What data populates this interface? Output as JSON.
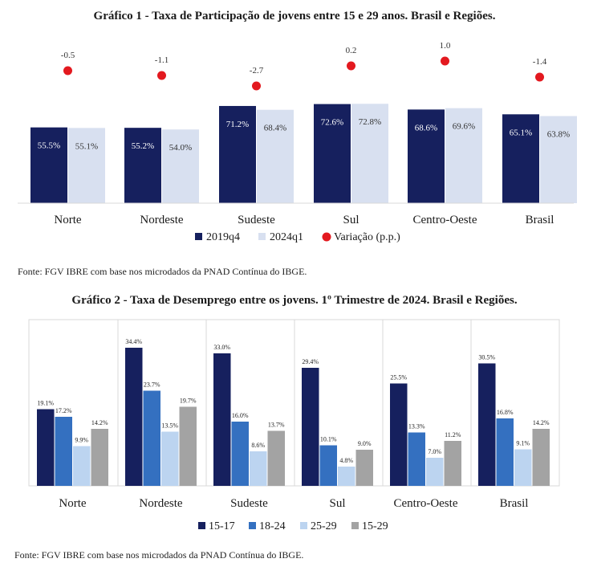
{
  "chart1": {
    "title": "Gráfico 1 - Taxa de Participação de jovens entre 15 e 29 anos. Brasil e Regiões.",
    "source": "Fonte: FGV IBRE com base nos microdados da PNAD Contínua do IBGE.",
    "legend": [
      "2019q4",
      "2024q1",
      "Variação (p.p.)"
    ],
    "colors": {
      "s2019": "#16205e",
      "s2024": "#d8e0f0",
      "variacao": "#e3191f"
    }
  },
  "chart2": {
    "title": "Gráfico 2 - Taxa de Desemprego entre os jovens. 1º Trimestre de 2024. Brasil e Regiões.",
    "source": "Fonte: FGV IBRE com base nos microdados da PNAD Contínua do IBGE.",
    "legend": [
      "15-17",
      "18-24",
      "25-29",
      "15-29"
    ],
    "colors": [
      "#16205e",
      "#3470c0",
      "#bcd4f0",
      "#a3a3a3"
    ]
  },
  "chart_data": [
    {
      "type": "bar",
      "title": "Gráfico 1 - Taxa de Participação de jovens entre 15 e 29 anos. Brasil e Regiões.",
      "categories": [
        "Norte",
        "Nordeste",
        "Sudeste",
        "Sul",
        "Centro-Oeste",
        "Brasil"
      ],
      "series": [
        {
          "name": "2019q4",
          "values": [
            55.5,
            55.2,
            71.2,
            72.6,
            68.6,
            65.1
          ],
          "labels": [
            "55.5%",
            "55.2%",
            "71.2%",
            "72.6%",
            "68.6%",
            "65.1%"
          ]
        },
        {
          "name": "2024q1",
          "values": [
            55.1,
            54.0,
            68.4,
            72.8,
            69.6,
            63.8
          ],
          "labels": [
            "55.1%",
            "54.0%",
            "68.4%",
            "72.8%",
            "69.6%",
            "63.8%"
          ]
        },
        {
          "name": "Variação (p.p.)",
          "type": "scatter",
          "values": [
            -0.5,
            -1.1,
            -2.7,
            0.2,
            1.0,
            -1.4
          ],
          "labels": [
            "-0.5",
            "-1.1",
            "-2.7",
            "0.2",
            "1.0",
            "-1.4"
          ]
        }
      ],
      "ylim": [
        0,
        100
      ],
      "grid": false,
      "legend": "bottom"
    },
    {
      "type": "bar",
      "title": "Gráfico 2 - Taxa de Desemprego entre os jovens. 1º Trimestre de 2024. Brasil e Regiões.",
      "categories": [
        "Norte",
        "Nordeste",
        "Sudeste",
        "Sul",
        "Centro-Oeste",
        "Brasil"
      ],
      "series": [
        {
          "name": "15-17",
          "values": [
            19.1,
            34.4,
            33.0,
            29.4,
            25.5,
            30.5
          ],
          "labels": [
            "19.1%",
            "34.4%",
            "33.0%",
            "29.4%",
            "25.5%",
            "30.5%"
          ]
        },
        {
          "name": "18-24",
          "values": [
            17.2,
            23.7,
            16.0,
            10.1,
            13.3,
            16.8
          ],
          "labels": [
            "17.2%",
            "23.7%",
            "16.0%",
            "10.1%",
            "13.3%",
            "16.8%"
          ]
        },
        {
          "name": "25-29",
          "values": [
            9.9,
            13.5,
            8.6,
            4.8,
            7.0,
            9.1
          ],
          "labels": [
            "9.9%",
            "13.5%",
            "8.6%",
            "4.8%",
            "7.0%",
            "9.1%"
          ]
        },
        {
          "name": "15-29",
          "values": [
            14.2,
            19.7,
            13.7,
            9.0,
            11.2,
            14.2
          ],
          "labels": [
            "14.2%",
            "19.7%",
            "13.7%",
            "9.0%",
            "11.2%",
            "14.2%"
          ]
        }
      ],
      "ylim": [
        0,
        35
      ],
      "grid": false,
      "legend": "bottom"
    }
  ]
}
